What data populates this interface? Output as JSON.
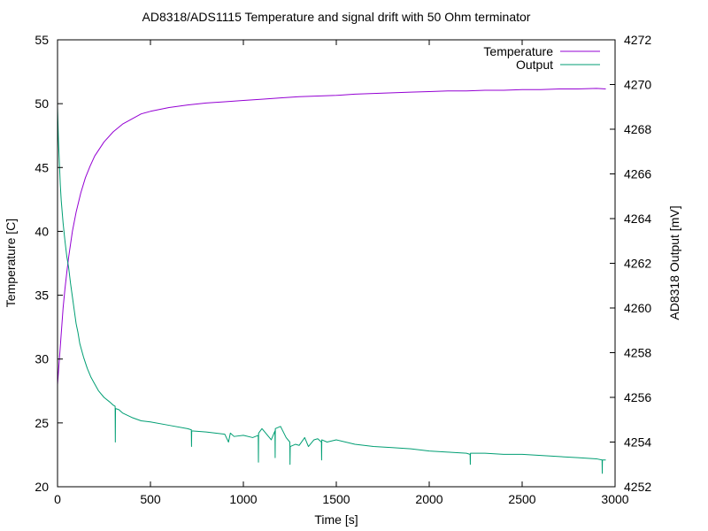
{
  "chart_data": {
    "type": "line",
    "title": "AD8318/ADS1115 Temperature and signal drift with 50 Ohm terminator",
    "xlabel": "Time [s]",
    "ylabel": "Temperature [C]",
    "y2label": "AD8318 Output [mV]",
    "xlim": [
      0,
      3000
    ],
    "ylim": [
      20,
      55
    ],
    "y2lim": [
      4252,
      4272
    ],
    "x_ticks": [
      "0",
      "500",
      "1000",
      "1500",
      "2000",
      "2500",
      "3000"
    ],
    "y_ticks": [
      "20",
      "25",
      "30",
      "35",
      "40",
      "45",
      "50",
      "55"
    ],
    "y2_ticks": [
      "4252",
      "4254",
      "4256",
      "4258",
      "4260",
      "4262",
      "4264",
      "4266",
      "4268",
      "4270",
      "4272"
    ],
    "grid": false,
    "legend_position": "top-right",
    "series": [
      {
        "name": "Temperature",
        "axis": "left",
        "color": "#9400d3",
        "x": [
          0,
          10,
          20,
          30,
          40,
          50,
          60,
          80,
          100,
          125,
          150,
          175,
          200,
          250,
          300,
          350,
          400,
          450,
          500,
          600,
          700,
          800,
          900,
          1000,
          1100,
          1200,
          1300,
          1400,
          1500,
          1600,
          1700,
          1800,
          1900,
          2000,
          2100,
          2200,
          2300,
          2400,
          2500,
          2600,
          2700,
          2800,
          2900,
          2950
        ],
        "y": [
          28.0,
          30.0,
          32.0,
          34.0,
          35.5,
          36.8,
          38.0,
          40.0,
          41.5,
          43.0,
          44.2,
          45.1,
          45.9,
          47.0,
          47.8,
          48.4,
          48.8,
          49.2,
          49.4,
          49.7,
          49.9,
          50.05,
          50.15,
          50.25,
          50.35,
          50.45,
          50.55,
          50.6,
          50.65,
          50.75,
          50.8,
          50.85,
          50.9,
          50.95,
          51.0,
          51.0,
          51.05,
          51.05,
          51.1,
          51.1,
          51.15,
          51.15,
          51.2,
          51.15
        ]
      },
      {
        "name": "Output",
        "axis": "right",
        "color": "#009e73",
        "x": [
          0,
          5,
          10,
          15,
          20,
          30,
          40,
          50,
          60,
          70,
          80,
          90,
          100,
          110,
          120,
          140,
          160,
          180,
          200,
          220,
          250,
          280,
          300,
          310,
          311,
          312,
          330,
          350,
          400,
          450,
          500,
          600,
          700,
          720,
          721,
          722,
          800,
          900,
          920,
          930,
          950,
          1000,
          1050,
          1080,
          1081,
          1082,
          1100,
          1150,
          1170,
          1171,
          1172,
          1200,
          1230,
          1250,
          1251,
          1252,
          1280,
          1300,
          1330,
          1350,
          1380,
          1400,
          1420,
          1421,
          1422,
          1450,
          1500,
          1600,
          1700,
          1800,
          1900,
          2000,
          2100,
          2200,
          2220,
          2221,
          2222,
          2300,
          2400,
          2500,
          2600,
          2700,
          2800,
          2900,
          2930,
          2931,
          2932,
          2950
        ],
        "y": [
          4269.0,
          4267.5,
          4266.5,
          4265.5,
          4264.8,
          4263.8,
          4263.0,
          4262.3,
          4261.8,
          4261.1,
          4260.5,
          4259.9,
          4259.3,
          4258.9,
          4258.4,
          4257.8,
          4257.3,
          4256.9,
          4256.6,
          4256.3,
          4256.0,
          4255.8,
          4255.65,
          4255.6,
          4254.0,
          4255.5,
          4255.45,
          4255.3,
          4255.1,
          4254.95,
          4254.9,
          4254.75,
          4254.6,
          4254.55,
          4253.8,
          4254.5,
          4254.45,
          4254.35,
          4254.0,
          4254.4,
          4254.25,
          4254.3,
          4254.2,
          4254.3,
          4253.1,
          4254.4,
          4254.6,
          4254.1,
          4254.5,
          4253.3,
          4254.6,
          4254.7,
          4254.2,
          4254.0,
          4253.0,
          4253.8,
          4253.9,
          4253.85,
          4254.2,
          4253.8,
          4254.1,
          4254.15,
          4254.0,
          4253.2,
          4254.1,
          4254.0,
          4254.1,
          4253.9,
          4253.8,
          4253.75,
          4253.7,
          4253.6,
          4253.55,
          4253.5,
          4253.45,
          4253.0,
          4253.5,
          4253.5,
          4253.45,
          4253.45,
          4253.4,
          4253.35,
          4253.3,
          4253.25,
          4253.2,
          4252.6,
          4253.2,
          4253.2
        ]
      }
    ]
  }
}
